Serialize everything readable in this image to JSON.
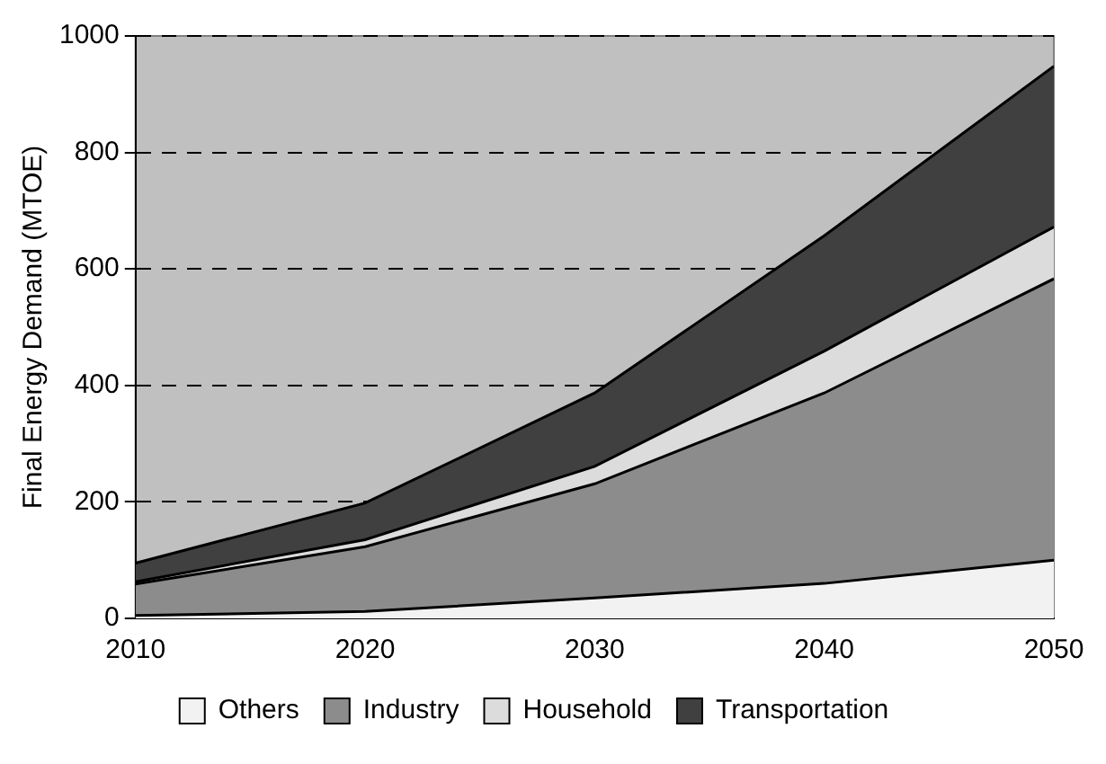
{
  "chart_data": {
    "type": "area",
    "stacked": true,
    "ylabel": "Final Energy Demand (MTOE)",
    "x": [
      2010,
      2020,
      2030,
      2040,
      2050
    ],
    "xlim": [
      2010,
      2050
    ],
    "xticks": [
      2010,
      2020,
      2030,
      2040,
      2050
    ],
    "ylim": [
      0,
      1000
    ],
    "yticks": [
      0,
      200,
      400,
      600,
      800,
      1000
    ],
    "grid": "y",
    "legend": "bottom",
    "series": [
      {
        "name": "Others",
        "color": "#f2f2f2",
        "values": [
          5,
          12,
          35,
          60,
          100
        ]
      },
      {
        "name": "Industry",
        "color": "#8c8c8c",
        "values": [
          54,
          111,
          196,
          327,
          483
        ]
      },
      {
        "name": "Household",
        "color": "#dcdcdc",
        "values": [
          4,
          12,
          30,
          72,
          89
        ]
      },
      {
        "name": "Transportation",
        "color": "#404040",
        "values": [
          32,
          63,
          126,
          198,
          276
        ]
      }
    ]
  }
}
